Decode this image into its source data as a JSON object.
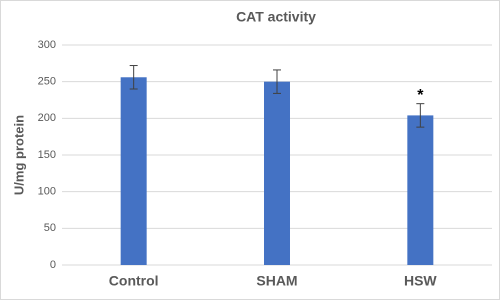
{
  "chart_data": {
    "type": "bar",
    "title": "CAT activity",
    "y_label": "U/mg protein",
    "categories": [
      "Control",
      "SHAM",
      "HSW"
    ],
    "values": [
      256,
      250,
      204
    ],
    "errors": [
      16,
      16,
      16
    ],
    "markers": [
      null,
      null,
      "*"
    ],
    "color": "#4472c4",
    "ylim": [
      0,
      300
    ],
    "yticks": [
      0,
      50,
      100,
      150,
      200,
      250,
      300
    ],
    "grid": true
  }
}
